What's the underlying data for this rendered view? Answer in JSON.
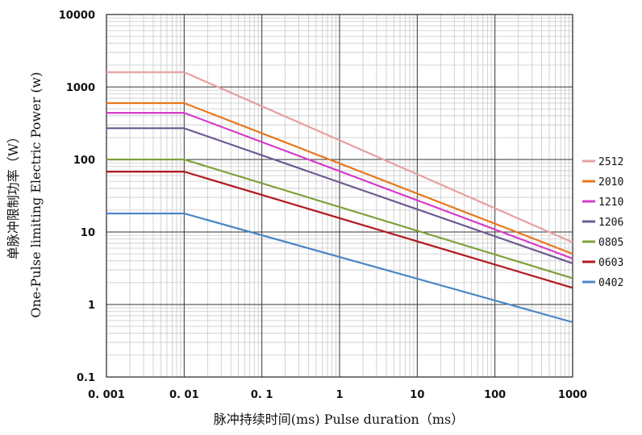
{
  "chart_data": {
    "type": "line",
    "xscale": "log",
    "yscale": "log",
    "xlim": [
      0.001,
      1000
    ],
    "ylim": [
      0.1,
      10000
    ],
    "grid": true,
    "legend_position": "right",
    "x_ticks": [
      "0. 001",
      "0. 01",
      "0. 1",
      "1",
      "10",
      "100",
      "1000"
    ],
    "y_ticks": [
      "10000",
      "1000",
      "100",
      "10",
      "1",
      "0.1"
    ],
    "xlabel": "脉冲持续时间(ms)  Pulse duration（ms）",
    "ylabel_cn": "单脉冲限制功率（W）",
    "ylabel_en": "One-Pulse limiting Electric Power (w)",
    "series": [
      {
        "name": "2512",
        "color": "#e6a0a0",
        "x": [
          0.001,
          0.01,
          1000
        ],
        "y": [
          1600,
          1600,
          7.2
        ]
      },
      {
        "name": "2010",
        "color": "#e8771c",
        "x": [
          0.001,
          0.01,
          1000
        ],
        "y": [
          600,
          600,
          5.0
        ]
      },
      {
        "name": "1210",
        "color": "#d63cc8",
        "x": [
          0.001,
          0.01,
          1000
        ],
        "y": [
          440,
          440,
          4.3
        ]
      },
      {
        "name": "1206",
        "color": "#6d5a92",
        "x": [
          0.001,
          0.01,
          1000
        ],
        "y": [
          270,
          270,
          3.7
        ]
      },
      {
        "name": "0805",
        "color": "#7fa03a",
        "x": [
          0.001,
          0.01,
          1000
        ],
        "y": [
          100,
          100,
          2.3
        ]
      },
      {
        "name": "0603",
        "color": "#b3181f",
        "x": [
          0.001,
          0.01,
          1000
        ],
        "y": [
          68,
          68,
          1.7
        ]
      },
      {
        "name": "0402",
        "color": "#4a86c4",
        "x": [
          0.001,
          0.01,
          1000
        ],
        "y": [
          18,
          18,
          0.57
        ]
      }
    ]
  }
}
